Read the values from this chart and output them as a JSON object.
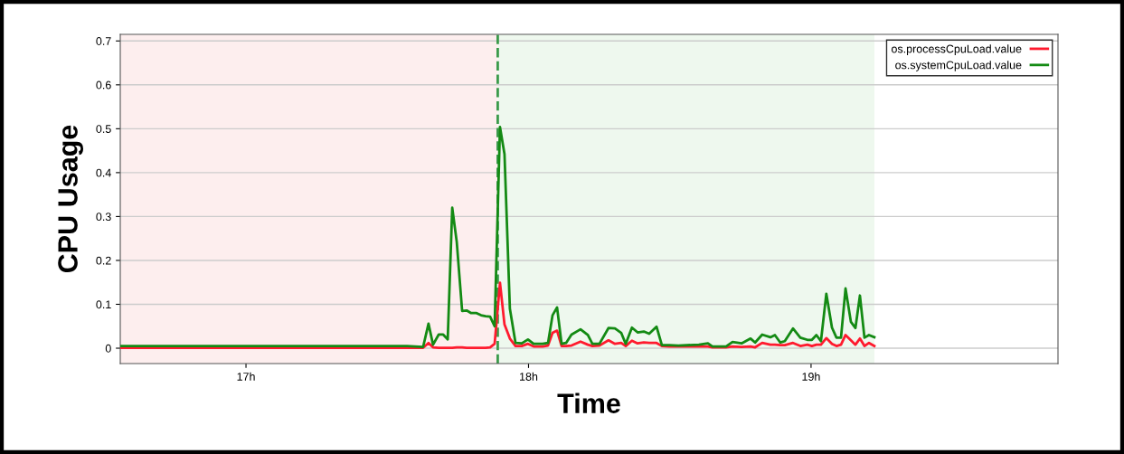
{
  "chart_data": {
    "type": "line",
    "xlabel": "Time",
    "ylabel": "CPU Usage",
    "x": [
      16.555,
      16.674,
      16.802,
      16.93,
      17.058,
      17.186,
      17.314,
      17.442,
      17.57,
      17.627,
      17.646,
      17.662,
      17.682,
      17.698,
      17.714,
      17.73,
      17.746,
      17.765,
      17.781,
      17.797,
      17.816,
      17.832,
      17.848,
      17.864,
      17.88,
      17.899,
      17.915,
      17.934,
      17.954,
      17.976,
      17.998,
      18.018,
      18.05,
      18.069,
      18.085,
      18.101,
      18.117,
      18.133,
      18.152,
      18.184,
      18.21,
      18.226,
      18.251,
      18.283,
      18.306,
      18.328,
      18.344,
      18.366,
      18.386,
      18.408,
      18.427,
      18.453,
      18.472,
      18.498,
      18.53,
      18.603,
      18.635,
      18.651,
      18.699,
      18.722,
      18.754,
      18.786,
      18.802,
      18.827,
      18.856,
      18.872,
      18.891,
      18.907,
      18.936,
      18.962,
      18.987,
      19.003,
      19.019,
      19.035,
      19.054,
      19.074,
      19.09,
      19.106,
      19.122,
      19.141,
      19.157,
      19.173,
      19.189,
      19.205,
      19.224
    ],
    "series": [
      {
        "name": "os.processCpuLoad.value",
        "color": "#ff1a2e",
        "values": [
          0.001,
          0.001,
          0.001,
          0.001,
          0.001,
          0.001,
          0.001,
          0.001,
          0.001,
          0.001,
          0.012,
          0.002,
          0.001,
          0.001,
          0.001,
          0.001,
          0.002,
          0.002,
          0.001,
          0.001,
          0.001,
          0.001,
          0.001,
          0.002,
          0.01,
          0.149,
          0.054,
          0.022,
          0.005,
          0.005,
          0.01,
          0.004,
          0.004,
          0.006,
          0.035,
          0.04,
          0.005,
          0.005,
          0.006,
          0.015,
          0.008,
          0.005,
          0.006,
          0.018,
          0.01,
          0.012,
          0.005,
          0.017,
          0.011,
          0.013,
          0.012,
          0.012,
          0.005,
          0.004,
          0.004,
          0.004,
          0.004,
          0.002,
          0.002,
          0.004,
          0.003,
          0.004,
          0.002,
          0.012,
          0.008,
          0.008,
          0.007,
          0.007,
          0.012,
          0.005,
          0.008,
          0.005,
          0.008,
          0.008,
          0.023,
          0.01,
          0.005,
          0.008,
          0.03,
          0.018,
          0.008,
          0.022,
          0.005,
          0.012,
          0.005
        ]
      },
      {
        "name": "os.systemCpuLoad.value",
        "color": "#138a13",
        "values": [
          0.005,
          0.005,
          0.005,
          0.005,
          0.005,
          0.005,
          0.005,
          0.005,
          0.005,
          0.003,
          0.056,
          0.008,
          0.031,
          0.031,
          0.02,
          0.32,
          0.242,
          0.085,
          0.086,
          0.08,
          0.08,
          0.075,
          0.073,
          0.072,
          0.05,
          0.504,
          0.442,
          0.09,
          0.012,
          0.011,
          0.02,
          0.01,
          0.01,
          0.012,
          0.075,
          0.093,
          0.01,
          0.012,
          0.031,
          0.043,
          0.03,
          0.01,
          0.01,
          0.046,
          0.045,
          0.035,
          0.01,
          0.047,
          0.036,
          0.038,
          0.033,
          0.049,
          0.007,
          0.007,
          0.006,
          0.008,
          0.011,
          0.004,
          0.004,
          0.014,
          0.011,
          0.022,
          0.013,
          0.031,
          0.025,
          0.03,
          0.013,
          0.016,
          0.045,
          0.024,
          0.019,
          0.019,
          0.03,
          0.016,
          0.124,
          0.047,
          0.024,
          0.024,
          0.136,
          0.06,
          0.046,
          0.12,
          0.024,
          0.03,
          0.025
        ]
      }
    ],
    "xlim": [
      16.555,
      19.874
    ],
    "ylim": [
      -0.035,
      0.715
    ],
    "xticks": [
      {
        "value": 17,
        "label": "17h"
      },
      {
        "value": 18,
        "label": "18h"
      },
      {
        "value": 19,
        "label": "19h"
      }
    ],
    "yticks": [
      0,
      0.1,
      0.2,
      0.3,
      0.4,
      0.5,
      0.6,
      0.7
    ],
    "bands": [
      {
        "axis": "x",
        "from": 16.555,
        "to": 17.891,
        "color": "#fdeeee"
      },
      {
        "axis": "x",
        "from": 17.891,
        "to": 19.224,
        "color": "#eef8ee"
      }
    ],
    "ref_lines": [
      {
        "axis": "x",
        "value": 17.891,
        "color": "#3a9a4a",
        "line_style": "dashed"
      }
    ],
    "grid": "y",
    "legend": "top right",
    "marker": "none",
    "line_style": "solid"
  }
}
